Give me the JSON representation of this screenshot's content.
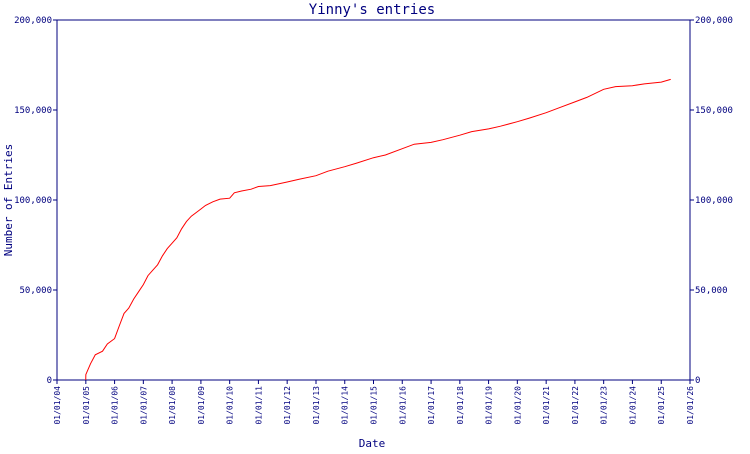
{
  "colors": {
    "axis": "#00007f",
    "line": "#ff0000",
    "background": "#ffffff"
  },
  "chart_data": {
    "type": "line",
    "title": "Yinny's entries",
    "xlabel": "Date",
    "ylabel": "Number of Entries",
    "ylim": [
      0,
      200000
    ],
    "y_ticks": [
      {
        "value": 0,
        "label": "0"
      },
      {
        "value": 50000,
        "label": "50,000"
      },
      {
        "value": 100000,
        "label": "100,000"
      },
      {
        "value": 150000,
        "label": "150,000"
      },
      {
        "value": 200000,
        "label": "200,000"
      }
    ],
    "xlim": [
      "2004-01-01",
      "2026-01-01"
    ],
    "x_ticks": [
      {
        "value": "2004-01-01",
        "label": "01/01/04"
      },
      {
        "value": "2005-01-01",
        "label": "01/01/05"
      },
      {
        "value": "2006-01-01",
        "label": "01/01/06"
      },
      {
        "value": "2007-01-01",
        "label": "01/01/07"
      },
      {
        "value": "2008-01-01",
        "label": "01/01/08"
      },
      {
        "value": "2009-01-01",
        "label": "01/01/09"
      },
      {
        "value": "2010-01-01",
        "label": "01/01/10"
      },
      {
        "value": "2011-01-01",
        "label": "01/01/11"
      },
      {
        "value": "2012-01-01",
        "label": "01/01/12"
      },
      {
        "value": "2013-01-01",
        "label": "01/01/13"
      },
      {
        "value": "2014-01-01",
        "label": "01/01/14"
      },
      {
        "value": "2015-01-01",
        "label": "01/01/15"
      },
      {
        "value": "2016-01-01",
        "label": "01/01/16"
      },
      {
        "value": "2017-01-01",
        "label": "01/01/17"
      },
      {
        "value": "2018-01-01",
        "label": "01/01/18"
      },
      {
        "value": "2019-01-01",
        "label": "01/01/19"
      },
      {
        "value": "2020-01-01",
        "label": "01/01/20"
      },
      {
        "value": "2021-01-01",
        "label": "01/01/21"
      },
      {
        "value": "2022-01-01",
        "label": "01/01/22"
      },
      {
        "value": "2023-01-01",
        "label": "01/01/23"
      },
      {
        "value": "2024-01-01",
        "label": "01/01/24"
      },
      {
        "value": "2025-01-01",
        "label": "01/01/25"
      },
      {
        "value": "2026-01-01",
        "label": "01/01/26"
      }
    ],
    "grid": false,
    "legend": "none",
    "y_axis_right_mirror": true,
    "series": [
      {
        "color": "#ff0000",
        "points": [
          {
            "x": "2004-12-31",
            "y": 0
          },
          {
            "x": "2005-01-01",
            "y": 3000
          },
          {
            "x": "2005-03-01",
            "y": 9000
          },
          {
            "x": "2005-05-01",
            "y": 14000
          },
          {
            "x": "2005-08-01",
            "y": 16000
          },
          {
            "x": "2005-10-01",
            "y": 20000
          },
          {
            "x": "2006-01-01",
            "y": 23000
          },
          {
            "x": "2006-03-01",
            "y": 30000
          },
          {
            "x": "2006-05-01",
            "y": 37000
          },
          {
            "x": "2006-07-01",
            "y": 40000
          },
          {
            "x": "2006-09-01",
            "y": 45000
          },
          {
            "x": "2006-11-01",
            "y": 49000
          },
          {
            "x": "2007-01-01",
            "y": 53000
          },
          {
            "x": "2007-03-01",
            "y": 58000
          },
          {
            "x": "2007-05-01",
            "y": 61000
          },
          {
            "x": "2007-07-01",
            "y": 64000
          },
          {
            "x": "2007-09-01",
            "y": 69000
          },
          {
            "x": "2007-11-01",
            "y": 73000
          },
          {
            "x": "2008-01-01",
            "y": 76000
          },
          {
            "x": "2008-03-01",
            "y": 79000
          },
          {
            "x": "2008-05-01",
            "y": 84000
          },
          {
            "x": "2008-07-01",
            "y": 88000
          },
          {
            "x": "2008-09-01",
            "y": 91000
          },
          {
            "x": "2008-11-01",
            "y": 93000
          },
          {
            "x": "2009-01-01",
            "y": 95000
          },
          {
            "x": "2009-03-01",
            "y": 97000
          },
          {
            "x": "2009-06-01",
            "y": 99000
          },
          {
            "x": "2009-09-01",
            "y": 100500
          },
          {
            "x": "2010-01-01",
            "y": 101000
          },
          {
            "x": "2010-03-01",
            "y": 104000
          },
          {
            "x": "2010-06-01",
            "y": 105000
          },
          {
            "x": "2010-10-01",
            "y": 106000
          },
          {
            "x": "2011-01-01",
            "y": 107500
          },
          {
            "x": "2011-06-01",
            "y": 108000
          },
          {
            "x": "2012-01-01",
            "y": 110000
          },
          {
            "x": "2012-06-01",
            "y": 111500
          },
          {
            "x": "2013-01-01",
            "y": 113500
          },
          {
            "x": "2013-06-01",
            "y": 116000
          },
          {
            "x": "2014-01-01",
            "y": 118500
          },
          {
            "x": "2014-06-01",
            "y": 120500
          },
          {
            "x": "2015-01-01",
            "y": 123500
          },
          {
            "x": "2015-06-01",
            "y": 125000
          },
          {
            "x": "2016-01-01",
            "y": 128500
          },
          {
            "x": "2016-06-01",
            "y": 131000
          },
          {
            "x": "2017-01-01",
            "y": 132000
          },
          {
            "x": "2017-06-01",
            "y": 133500
          },
          {
            "x": "2018-01-01",
            "y": 136000
          },
          {
            "x": "2018-06-01",
            "y": 138000
          },
          {
            "x": "2019-01-01",
            "y": 139500
          },
          {
            "x": "2019-06-01",
            "y": 141000
          },
          {
            "x": "2020-01-01",
            "y": 143500
          },
          {
            "x": "2020-06-01",
            "y": 145500
          },
          {
            "x": "2021-01-01",
            "y": 148500
          },
          {
            "x": "2021-06-01",
            "y": 151000
          },
          {
            "x": "2022-01-01",
            "y": 154500
          },
          {
            "x": "2022-06-01",
            "y": 157000
          },
          {
            "x": "2023-01-01",
            "y": 161500
          },
          {
            "x": "2023-06-01",
            "y": 163000
          },
          {
            "x": "2024-01-01",
            "y": 163500
          },
          {
            "x": "2024-06-01",
            "y": 164500
          },
          {
            "x": "2025-01-01",
            "y": 165500
          },
          {
            "x": "2025-05-01",
            "y": 167000
          }
        ]
      }
    ]
  }
}
